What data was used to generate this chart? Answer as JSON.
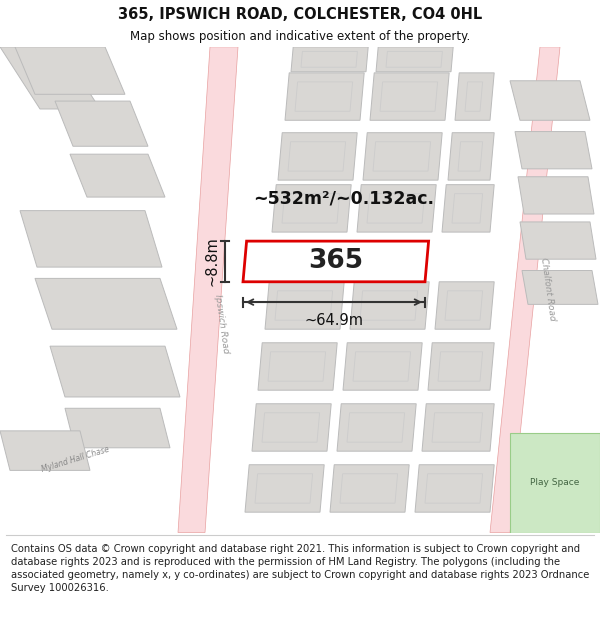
{
  "title": "365, IPSWICH ROAD, COLCHESTER, CO4 0HL",
  "subtitle": "Map shows position and indicative extent of the property.",
  "footer": "Contains OS data © Crown copyright and database right 2021. This information is subject to Crown copyright and database rights 2023 and is reproduced with the permission of HM Land Registry. The polygons (including the associated geometry, namely x, y co-ordinates) are subject to Crown copyright and database rights 2023 Ordnance Survey 100026316.",
  "area_label": "~532m²/~0.132ac.",
  "width_label": "~64.9m",
  "height_label": "~8.8m",
  "address_label": "365",
  "map_bg": "#f7f6f4",
  "road_color": "#fadadd",
  "road_edge_color": "#e8a0a0",
  "building_fill": "#d9d7d4",
  "building_edge": "#bbbbbb",
  "highlight_fill": "#ffffff",
  "highlight_edge": "#dd0000",
  "green_fill": "#cce8c4",
  "green_edge": "#99cc88",
  "title_fontsize": 10.5,
  "subtitle_fontsize": 8.5,
  "footer_fontsize": 7.2
}
